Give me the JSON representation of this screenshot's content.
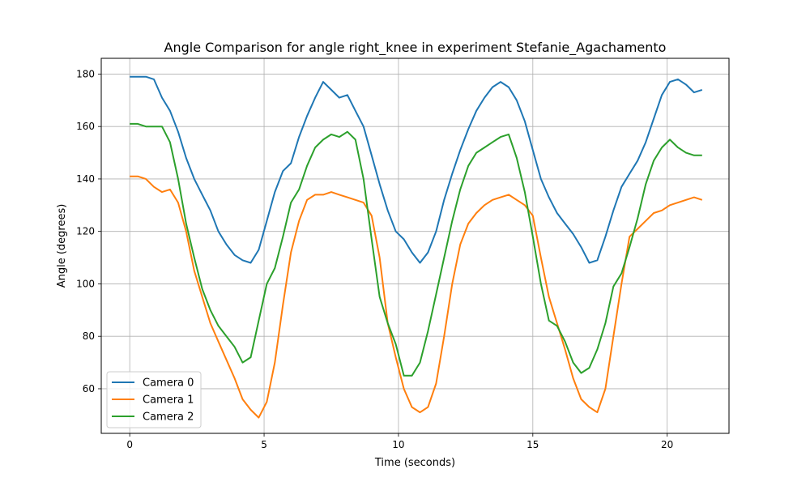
{
  "chart_data": {
    "type": "line",
    "title": "Angle Comparison for angle right_knee in experiment Stefanie_Agachamento",
    "xlabel": "Time (seconds)",
    "ylabel": "Angle (degrees)",
    "xlim": [
      -1.06,
      22.3
    ],
    "ylim": [
      43,
      186
    ],
    "xticks": [
      0,
      5,
      10,
      15,
      20
    ],
    "yticks": [
      60,
      80,
      100,
      120,
      140,
      160,
      180
    ],
    "grid": true,
    "legend_position": "lower left",
    "series": [
      {
        "name": "Camera 0",
        "color": "#1f77b4",
        "x": [
          0,
          0.3,
          0.6,
          0.9,
          1.2,
          1.5,
          1.8,
          2.1,
          2.4,
          2.7,
          3.0,
          3.3,
          3.6,
          3.9,
          4.2,
          4.5,
          4.8,
          5.1,
          5.4,
          5.7,
          6.0,
          6.3,
          6.6,
          6.9,
          7.2,
          7.5,
          7.8,
          8.1,
          8.4,
          8.7,
          9.0,
          9.3,
          9.6,
          9.9,
          10.2,
          10.5,
          10.8,
          11.1,
          11.4,
          11.7,
          12.0,
          12.3,
          12.6,
          12.9,
          13.2,
          13.5,
          13.8,
          14.1,
          14.4,
          14.7,
          15.0,
          15.3,
          15.6,
          15.9,
          16.2,
          16.5,
          16.8,
          17.1,
          17.4,
          17.7,
          18.0,
          18.3,
          18.6,
          18.9,
          19.2,
          19.5,
          19.8,
          20.1,
          20.4,
          20.7,
          21.0,
          21.3
        ],
        "y": [
          179,
          179,
          179,
          178,
          171,
          166,
          158,
          148,
          140,
          134,
          128,
          120,
          115,
          111,
          109,
          108,
          113,
          124,
          135,
          143,
          146,
          156,
          164,
          171,
          177,
          174,
          171,
          172,
          166,
          160,
          149,
          138,
          128,
          120,
          117,
          112,
          108,
          112,
          120,
          132,
          142,
          151,
          159,
          166,
          171,
          175,
          177,
          175,
          170,
          162,
          151,
          140,
          133,
          127,
          123,
          119,
          114,
          108,
          109,
          118,
          128,
          137,
          142,
          147,
          154,
          163,
          172,
          177,
          178,
          176,
          173,
          174
        ]
      },
      {
        "name": "Camera 1",
        "color": "#ff7f0e",
        "x": [
          0,
          0.3,
          0.6,
          0.9,
          1.2,
          1.5,
          1.8,
          2.1,
          2.4,
          2.7,
          3.0,
          3.3,
          3.6,
          3.9,
          4.2,
          4.5,
          4.8,
          5.1,
          5.4,
          5.7,
          6.0,
          6.3,
          6.6,
          6.9,
          7.2,
          7.5,
          7.8,
          8.1,
          8.4,
          8.7,
          9.0,
          9.3,
          9.6,
          9.9,
          10.2,
          10.5,
          10.8,
          11.1,
          11.4,
          11.7,
          12.0,
          12.3,
          12.6,
          12.9,
          13.2,
          13.5,
          13.8,
          14.1,
          14.4,
          14.7,
          15.0,
          15.3,
          15.6,
          15.9,
          16.2,
          16.5,
          16.8,
          17.1,
          17.4,
          17.7,
          18.0,
          18.3,
          18.6,
          18.9,
          19.2,
          19.5,
          19.8,
          20.1,
          20.4,
          20.7,
          21.0,
          21.3
        ],
        "y": [
          141,
          141,
          140,
          137,
          135,
          136,
          131,
          120,
          105,
          95,
          85,
          78,
          71,
          64,
          56,
          52,
          49,
          55,
          70,
          92,
          112,
          124,
          132,
          134,
          134,
          135,
          134,
          133,
          132,
          131,
          126,
          110,
          85,
          72,
          60,
          53,
          51,
          53,
          62,
          80,
          100,
          115,
          123,
          127,
          130,
          132,
          133,
          134,
          132,
          130,
          126,
          110,
          95,
          85,
          75,
          64,
          56,
          53,
          51,
          60,
          80,
          100,
          118,
          121,
          124,
          127,
          128,
          130,
          131,
          132,
          133,
          132
        ]
      },
      {
        "name": "Camera 2",
        "color": "#2ca02c",
        "x": [
          0,
          0.3,
          0.6,
          0.9,
          1.2,
          1.5,
          1.8,
          2.1,
          2.4,
          2.7,
          3.0,
          3.3,
          3.6,
          3.9,
          4.2,
          4.5,
          4.8,
          5.1,
          5.4,
          5.7,
          6.0,
          6.3,
          6.6,
          6.9,
          7.2,
          7.5,
          7.8,
          8.1,
          8.4,
          8.7,
          9.0,
          9.3,
          9.6,
          9.9,
          10.2,
          10.5,
          10.8,
          11.1,
          11.4,
          11.7,
          12.0,
          12.3,
          12.6,
          12.9,
          13.2,
          13.5,
          13.8,
          14.1,
          14.4,
          14.7,
          15.0,
          15.3,
          15.6,
          15.9,
          16.2,
          16.5,
          16.8,
          17.1,
          17.4,
          17.7,
          18.0,
          18.3,
          18.6,
          18.9,
          19.2,
          19.5,
          19.8,
          20.1,
          20.4,
          20.7,
          21.0,
          21.3
        ],
        "y": [
          161,
          161,
          160,
          160,
          160,
          154,
          140,
          123,
          110,
          98,
          90,
          84,
          80,
          76,
          70,
          72,
          86,
          100,
          106,
          118,
          131,
          136,
          145,
          152,
          155,
          157,
          156,
          158,
          155,
          140,
          117,
          95,
          85,
          77,
          65,
          65,
          70,
          82,
          96,
          110,
          124,
          136,
          145,
          150,
          152,
          154,
          156,
          157,
          148,
          135,
          118,
          100,
          86,
          84,
          78,
          70,
          66,
          68,
          75,
          85,
          99,
          104,
          114,
          125,
          138,
          147,
          152,
          155,
          152,
          150,
          149,
          149
        ]
      }
    ]
  }
}
